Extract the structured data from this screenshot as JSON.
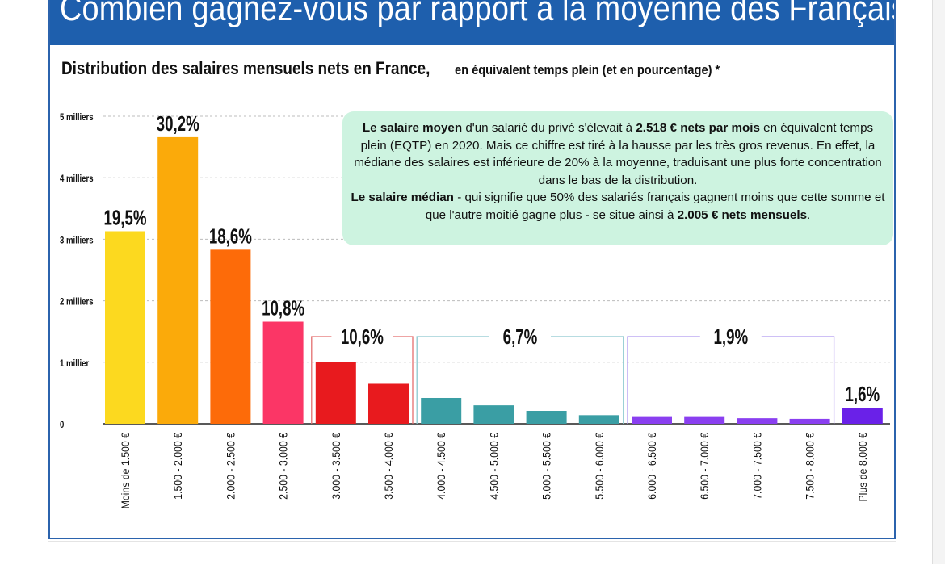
{
  "header": {
    "title": "Combien gagnez-vous par rapport à la moyenne des Français ?"
  },
  "subtitle": {
    "main": "Distribution des salaires mensuels nets en France,",
    "rest": "en équivalent temps plein (et en pourcentage) *"
  },
  "infobox": {
    "p1_bold": "Le salaire moyen",
    "p1_a": " d'un salarié du privé s'élevait à ",
    "p1_bold2": "2.518 € nets par mois",
    "p1_b": " en équivalent temps plein (EQTP) en 2020. Mais ce chiffre est tiré à la hausse par les très gros revenus. En effet, la médiane des salaires est inférieure de 20% à la moyenne, traduisant une plus forte concentration dans le bas de la distribution.",
    "p2_bold": "Le salaire médian",
    "p2_a": " - qui signifie que 50% des salariés français gagnent moins que cette somme et que l'autre moitié gagne plus - se situe ainsi à ",
    "p2_bold2": "2.005 € nets mensuels",
    "p2_b": "."
  },
  "colors": {
    "banner": "#1e5fad",
    "infobox": "#cdf3e0",
    "bar_colors": [
      "#fcd91f",
      "#fbaa0a",
      "#fd6b09",
      "#fb3666",
      "#e81a1e",
      "#e81a1e",
      "#3a9ea4",
      "#3a9ea4",
      "#3a9ea4",
      "#3a9ea4",
      "#8a3ff0",
      "#8a3ff0",
      "#8a3ff0",
      "#8a3ff0",
      "#6a21e8"
    ],
    "group_bracket": [
      "#e46e6e",
      "#8cc8cf",
      "#b19af0"
    ]
  },
  "chart_data": {
    "type": "bar",
    "title": "Distribution des salaires mensuels nets en France, en équivalent temps plein (et en pourcentage) *",
    "ylabel": "",
    "ylim": [
      0,
      5000
    ],
    "yticks": [
      {
        "value": 0,
        "label": "0"
      },
      {
        "value": 1000,
        "label": "1 millier"
      },
      {
        "value": 2000,
        "label": "2 milliers"
      },
      {
        "value": 3000,
        "label": "3 milliers"
      },
      {
        "value": 4000,
        "label": "4 milliers"
      },
      {
        "value": 5000,
        "label": "5 milliers"
      }
    ],
    "grid": "horizontal dashed",
    "categories": [
      "Moins de 1.500 €",
      "1.500 - 2.000 €",
      "2.000 - 2.500 €",
      "2.500 - 3.000 €",
      "3.000 - 3.500 €",
      "3.500 - 4.000 €",
      "4.000 - 4.500 €",
      "4.500 - 5.000 €",
      "5.000 - 5.500 €",
      "5.500 - 6.000 €",
      "6.000 - 6.500 €",
      "6.500 - 7.000 €",
      "7.000 - 7.500 €",
      "7.500 - 8.000 €",
      "Plus de 8.000 €"
    ],
    "values": [
      3130,
      4660,
      2830,
      1660,
      1010,
      650,
      420,
      300,
      210,
      140,
      110,
      110,
      90,
      80,
      260
    ],
    "labels": [
      {
        "text": "19,5%",
        "bars": [
          0
        ]
      },
      {
        "text": "30,2%",
        "bars": [
          1
        ]
      },
      {
        "text": "18,6%",
        "bars": [
          2
        ]
      },
      {
        "text": "10,8%",
        "bars": [
          3
        ]
      },
      {
        "text": "10,6%",
        "bars": [
          4,
          5
        ],
        "bracket": true
      },
      {
        "text": "6,7%",
        "bars": [
          6,
          7,
          8,
          9
        ],
        "bracket": true
      },
      {
        "text": "1,9%",
        "bars": [
          10,
          11,
          12,
          13
        ],
        "bracket": true
      },
      {
        "text": "1,6%",
        "bars": [
          14
        ]
      }
    ]
  }
}
